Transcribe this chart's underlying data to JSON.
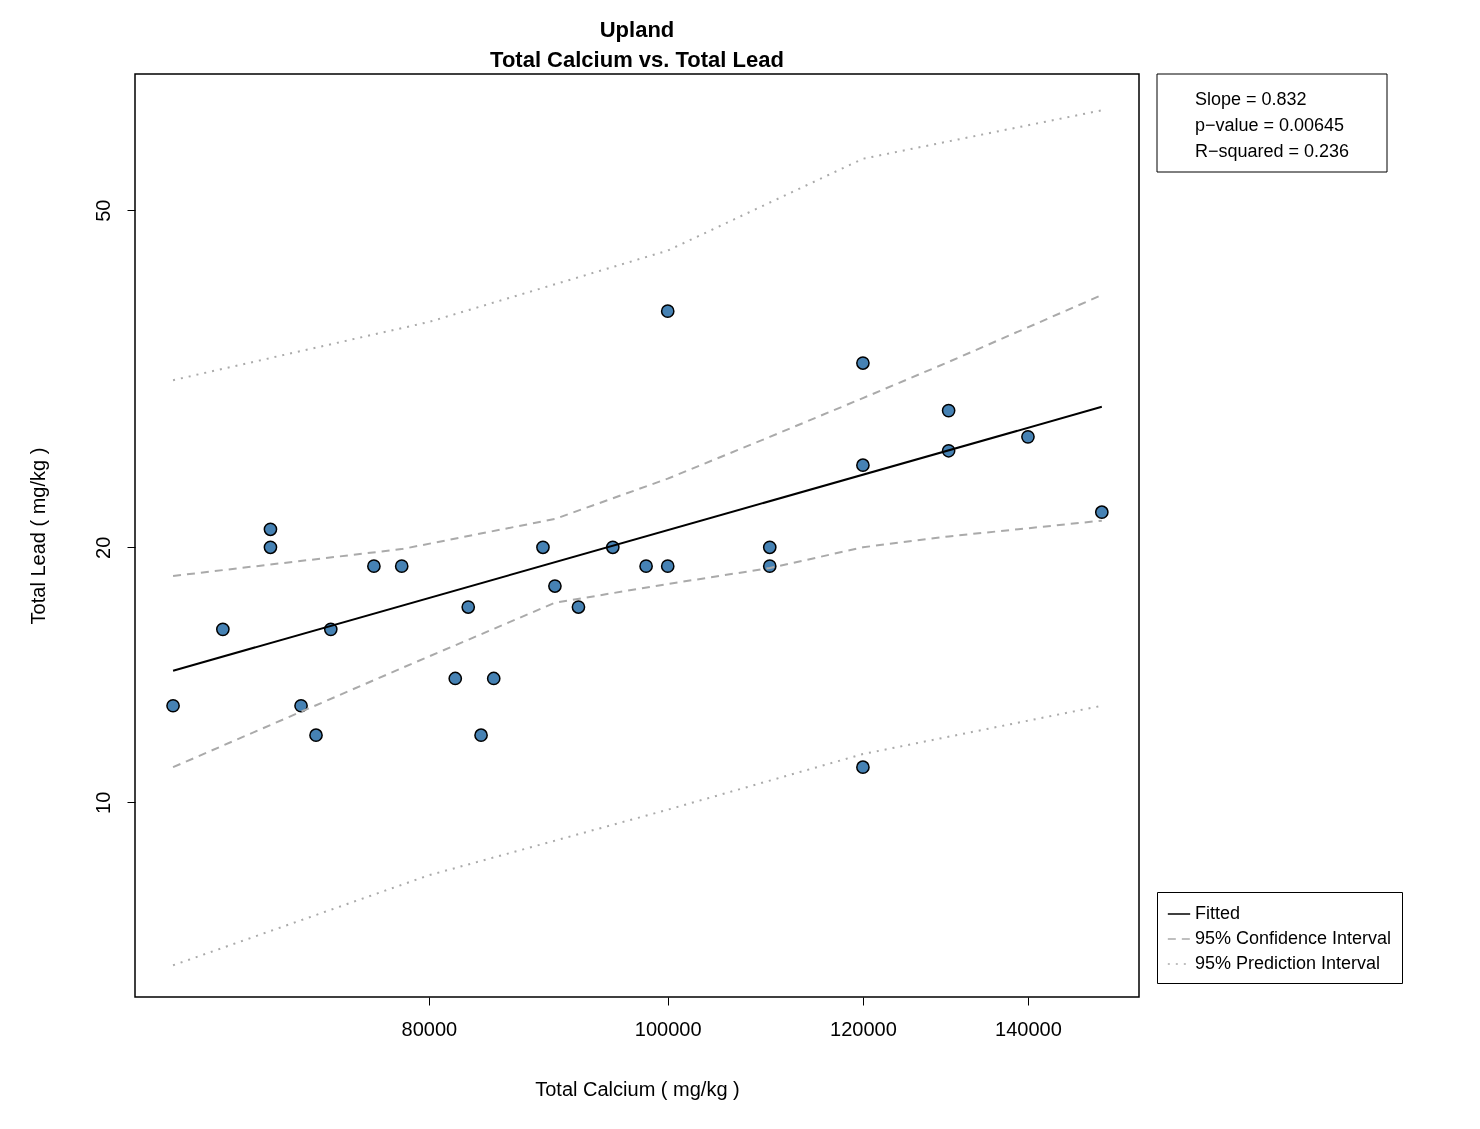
{
  "chart_data": {
    "type": "scatter",
    "title": "Upland",
    "subtitle": "Total Calcium vs. Total Lead",
    "xlabel": "Total Calcium ( mg/kg )",
    "ylabel": "Total Lead ( mg/kg )",
    "log": "xy",
    "xlim": [
      60800,
      155300
    ],
    "ylim": [
      5.89,
      72.4
    ],
    "xticks": [
      80000,
      100000,
      120000,
      140000
    ],
    "yticks": [
      10,
      20,
      50
    ],
    "grid": false,
    "legend": "bottom right",
    "marker": "circle",
    "annotations": [
      "Slope = 0.832",
      "p−value = 0.00645",
      "R−squared = 0.236"
    ],
    "series": [
      {
        "color": "#4682b4",
        "x": [
          63000,
          66000,
          69000,
          69000,
          71000,
          72000,
          73000,
          76000,
          78000,
          82000,
          83000,
          84000,
          85000,
          89000,
          90000,
          92000,
          95000,
          98000,
          100000,
          100000,
          110000,
          110000,
          120000,
          120000,
          120000,
          130000,
          130000,
          140000,
          150000
        ],
        "values": [
          13,
          16,
          21,
          20,
          13,
          12,
          16,
          19,
          19,
          14,
          17,
          12,
          14,
          20,
          18,
          17,
          20,
          19,
          38,
          19,
          20,
          19,
          33,
          25,
          11,
          29,
          26,
          27,
          22
        ]
      },
      {
        "type": "line",
        "name": "Fitted",
        "color": "#000000",
        "line_style": "solid",
        "marker": "none",
        "x": [
          63000,
          150000
        ],
        "values": [
          14.3,
          29.3
        ]
      },
      {
        "type": "line",
        "name": "95% Confidence Interval",
        "color": "#aaaaaa",
        "line_style": "dashed",
        "marker": "none",
        "x": [
          63000,
          78000,
          90000,
          100000,
          110000,
          120000,
          130000,
          150000
        ],
        "values": [
          18.5,
          19.9,
          21.6,
          24.1,
          27.0,
          30.0,
          33.1,
          39.7
        ]
      },
      {
        "type": "line",
        "color": "#aaaaaa",
        "line_style": "dashed",
        "marker": "none",
        "x": [
          63000,
          78000,
          90000,
          100000,
          110000,
          120000,
          130000,
          150000
        ],
        "values": [
          11.0,
          14.4,
          17.2,
          18.1,
          18.9,
          20.0,
          20.6,
          21.5
        ]
      },
      {
        "type": "line",
        "name": "95% Prediction Interval",
        "color": "#aaaaaa",
        "line_style": "dotted",
        "marker": "none",
        "x": [
          63000,
          80000,
          100000,
          120000,
          150000
        ],
        "values": [
          31.5,
          36.9,
          44.8,
          57.5,
          65.6
        ]
      },
      {
        "type": "line",
        "color": "#aaaaaa",
        "line_style": "dotted",
        "marker": "none",
        "x": [
          63000,
          80000,
          100000,
          120000,
          150000
        ],
        "values": [
          6.42,
          8.2,
          9.8,
          11.4,
          13.0
        ]
      }
    ]
  }
}
